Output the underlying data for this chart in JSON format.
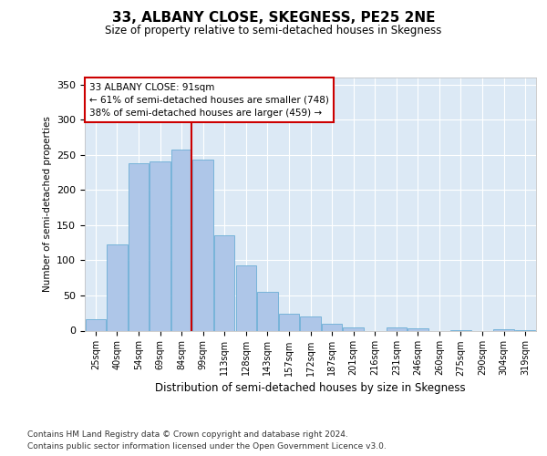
{
  "title": "33, ALBANY CLOSE, SKEGNESS, PE25 2NE",
  "subtitle": "Size of property relative to semi-detached houses in Skegness",
  "xlabel": "Distribution of semi-detached houses by size in Skegness",
  "ylabel": "Number of semi-detached properties",
  "categories": [
    "25sqm",
    "40sqm",
    "54sqm",
    "69sqm",
    "84sqm",
    "99sqm",
    "113sqm",
    "128sqm",
    "143sqm",
    "157sqm",
    "172sqm",
    "187sqm",
    "201sqm",
    "216sqm",
    "231sqm",
    "246sqm",
    "260sqm",
    "275sqm",
    "290sqm",
    "304sqm",
    "319sqm"
  ],
  "values": [
    16,
    122,
    238,
    241,
    258,
    243,
    135,
    93,
    55,
    24,
    20,
    10,
    5,
    0,
    4,
    3,
    0,
    1,
    0,
    2,
    1
  ],
  "bar_color": "#aec6e8",
  "bar_edge_color": "#6baed6",
  "bg_color": "#dce9f5",
  "grid_color": "#ffffff",
  "annotation_text": "33 ALBANY CLOSE: 91sqm\n← 61% of semi-detached houses are smaller (748)\n38% of semi-detached houses are larger (459) →",
  "annotation_box_color": "#ffffff",
  "annotation_box_edge": "#cc0000",
  "ylim": [
    0,
    360
  ],
  "yticks": [
    0,
    50,
    100,
    150,
    200,
    250,
    300,
    350
  ],
  "footer_line1": "Contains HM Land Registry data © Crown copyright and database right 2024.",
  "footer_line2": "Contains public sector information licensed under the Open Government Licence v3.0."
}
